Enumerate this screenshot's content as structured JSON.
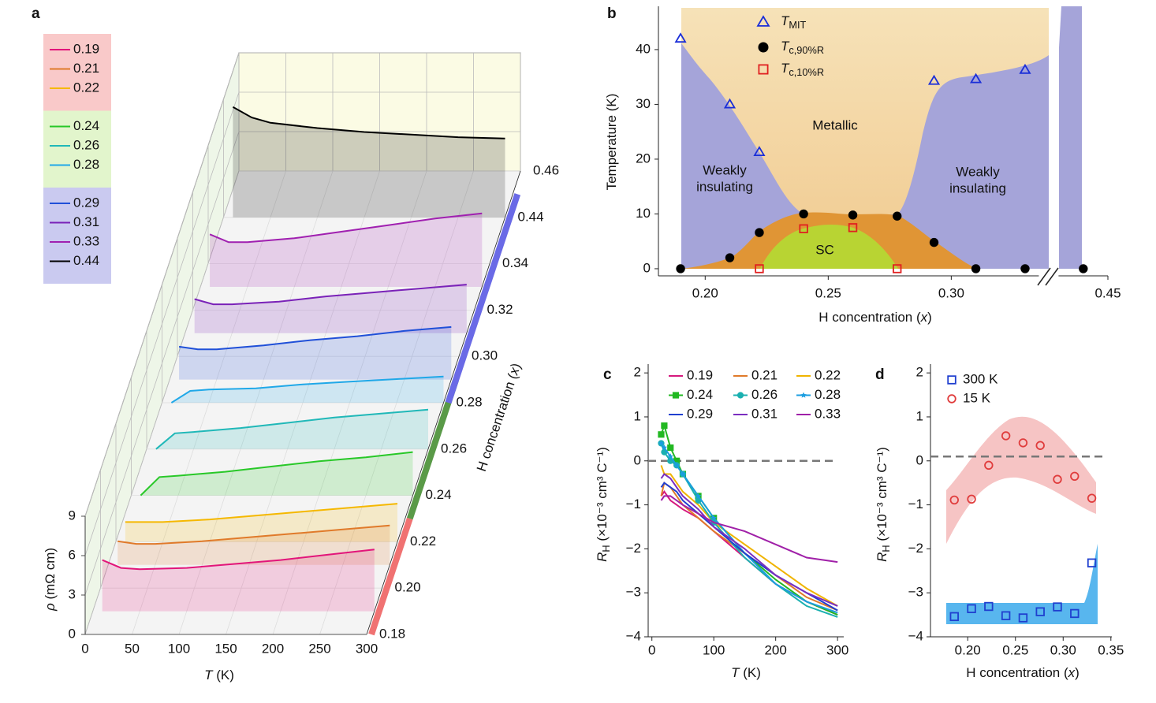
{
  "chart_data": [
    {
      "type": "waterfall",
      "panel": "a",
      "x": [
        10,
        30,
        50,
        100,
        150,
        200,
        250,
        300
      ],
      "xlim": [
        0,
        300
      ],
      "xticks": [
        0,
        50,
        100,
        150,
        200,
        250,
        300
      ],
      "ylim": [
        0,
        9
      ],
      "yticks": [
        0,
        3,
        6,
        9
      ],
      "zticks": [
        0.18,
        {
          "value": 0.2,
          "label": "0.20"
        },
        0.22,
        0.24,
        0.26,
        0.28,
        {
          "value": 0.3,
          "label": "0.30"
        },
        0.32,
        0.34,
        0.44,
        0.46
      ],
      "xlabel": [
        {
          "text": "T",
          "style": "italic"
        },
        {
          "text": " (K)"
        }
      ],
      "ylabel": [
        {
          "text": "ρ",
          "style": "italic"
        },
        {
          "text": " (mΩ cm)"
        }
      ],
      "zlabel": [
        {
          "text": "H concentration ("
        },
        {
          "text": "x",
          "style": "italic"
        },
        {
          "text": ")"
        }
      ],
      "groups": [
        {
          "color": "#f9c9c9",
          "bar_color": "#f07272",
          "series": [
            {
              "name": "0.19",
              "z": 0.19,
              "color": "#e2157a",
              "values": [
                3.9,
                3.3,
                3.2,
                3.3,
                3.6,
                3.9,
                4.3,
                4.7
              ]
            },
            {
              "name": "0.21",
              "z": 0.21,
              "color": "#e07a2a",
              "values": [
                1.8,
                1.6,
                1.6,
                1.8,
                2.1,
                2.4,
                2.7,
                3.0
              ]
            },
            {
              "name": "0.22",
              "z": 0.22,
              "color": "#f5b800",
              "values": [
                1.5,
                1.5,
                1.5,
                1.7,
                2.0,
                2.3,
                2.6,
                2.9
              ]
            }
          ]
        },
        {
          "color": "#e2f5cc",
          "bar_color": "#5a9a48",
          "series": [
            {
              "name": "0.24",
              "z": 0.24,
              "color": "#28c828",
              "values": [
                0,
                1.4,
                1.5,
                1.8,
                2.2,
                2.6,
                2.9,
                3.3
              ]
            },
            {
              "name": "0.26",
              "z": 0.26,
              "color": "#20b8b8",
              "values": [
                0,
                1.2,
                1.3,
                1.6,
                2.0,
                2.4,
                2.7,
                3.0
              ]
            },
            {
              "name": "0.28",
              "z": 0.28,
              "color": "#20a8e8",
              "values": [
                0,
                0.9,
                1.0,
                1.1,
                1.4,
                1.6,
                1.8,
                2.0
              ]
            }
          ]
        },
        {
          "color": "#cacaf0",
          "bar_color": "#6a6ae6",
          "series": [
            {
              "name": "0.29",
              "z": 0.29,
              "color": "#2050d8",
              "values": [
                2.5,
                2.3,
                2.3,
                2.6,
                3.0,
                3.3,
                3.7,
                4.0
              ]
            },
            {
              "name": "0.31",
              "z": 0.31,
              "color": "#7a22b8",
              "values": [
                2.6,
                2.2,
                2.2,
                2.4,
                2.8,
                3.1,
                3.4,
                3.7
              ]
            },
            {
              "name": "0.33",
              "z": 0.33,
              "color": "#a020b0",
              "values": [
                4.0,
                3.4,
                3.4,
                3.7,
                4.2,
                4.7,
                5.2,
                5.6
              ]
            },
            {
              "name": "0.44",
              "z": 0.44,
              "color": "#000000",
              "values": [
                8.4,
                7.6,
                7.2,
                6.8,
                6.5,
                6.3,
                6.1,
                6.0
              ]
            }
          ]
        }
      ]
    },
    {
      "type": "phase",
      "panel": "b",
      "xlim": [
        0.181,
        0.45
      ],
      "xbreak": [
        0.3375,
        0.4325
      ],
      "xticks": [
        {
          "value": 0.2,
          "label": "0.20"
        },
        0.25,
        {
          "value": 0.3,
          "label": "0.30"
        },
        0.45
      ],
      "ylim": [
        -1.3,
        47.9
      ],
      "yticks": [
        0,
        10,
        20,
        30,
        40
      ],
      "xlabel": [
        {
          "text": "H concentration ("
        },
        {
          "text": "x",
          "style": "italic"
        },
        {
          "text": ")"
        }
      ],
      "ylabel": [
        {
          "text": "Temperature (K)"
        }
      ],
      "annotations": [
        {
          "lines": [
            "Metallic"
          ]
        },
        {
          "lines": [
            "Weakly",
            "insulating"
          ]
        },
        {
          "lines": [
            "Weakly",
            "insulating"
          ]
        },
        {
          "lines": [
            "SC"
          ]
        }
      ],
      "series": [
        {
          "name": [
            {
              "text": "T",
              "style": "italic"
            },
            {
              "text": "MIT",
              "style": "sub"
            }
          ],
          "marker": "triangle",
          "color": "#1a2ed8",
          "x": [
            0.19,
            0.21,
            0.222,
            0.293,
            0.31,
            0.33
          ],
          "values": [
            42,
            30,
            21.3,
            34.3,
            34.6,
            36.3
          ]
        },
        {
          "name": [
            {
              "text": "T",
              "style": "italic"
            },
            {
              "text": "c,90%R",
              "style": "sub"
            }
          ],
          "marker": "dot",
          "color": "#000000",
          "x": [
            0.19,
            0.21,
            0.222,
            0.24,
            0.26,
            0.278,
            0.293,
            0.31,
            0.33,
            0.44
          ],
          "values": [
            0,
            2,
            6.6,
            10,
            9.8,
            9.6,
            4.8,
            0,
            0,
            0
          ]
        },
        {
          "name": [
            {
              "text": "T",
              "style": "italic"
            },
            {
              "text": "c,10%R",
              "style": "sub"
            }
          ],
          "marker": "square",
          "color": "#e02020",
          "x": [
            0.222,
            0.24,
            0.26,
            0.278
          ],
          "values": [
            0,
            7.3,
            7.5,
            0
          ]
        }
      ]
    },
    {
      "type": "line",
      "panel": "c",
      "x": [
        15,
        20,
        30,
        40,
        50,
        75,
        100,
        150,
        200,
        250,
        300
      ],
      "xlim": [
        -6,
        310
      ],
      "xticks": [
        0,
        100,
        200,
        300
      ],
      "ylim": [
        -4,
        2.2
      ],
      "yticks": [
        {
          "value": -4,
          "label": "−4"
        },
        {
          "value": -3,
          "label": "−3"
        },
        {
          "value": -2,
          "label": "−2"
        },
        {
          "value": -1,
          "label": "−1"
        },
        0,
        1,
        2
      ],
      "hline": 0,
      "xlabel": [
        {
          "text": "T",
          "style": "italic"
        },
        {
          "text": " (K)"
        }
      ],
      "ylabel": [
        {
          "text": "R",
          "style": "italic"
        },
        {
          "text": "H",
          "style": "sub"
        },
        {
          "text": " (×10⁻³ cm³ C⁻¹)"
        }
      ],
      "series": [
        {
          "name": "0.19",
          "color": "#d6197e",
          "values": [
            -0.8,
            -0.7,
            -0.9,
            -1.0,
            -1.1,
            -1.3,
            -1.6,
            -2.2,
            -2.8,
            -3.2,
            -3.5
          ]
        },
        {
          "name": "0.21",
          "color": "#e07a2a",
          "values": [
            -0.8,
            -0.5,
            -0.6,
            -0.8,
            -1.0,
            -1.3,
            -1.6,
            -2.1,
            -2.6,
            -3.1,
            -3.4
          ]
        },
        {
          "name": "0.22",
          "color": "#f0b400",
          "values": [
            -0.1,
            -0.3,
            -0.3,
            -0.5,
            -0.7,
            -1.0,
            -1.4,
            -1.9,
            -2.4,
            -2.9,
            -3.3
          ]
        },
        {
          "name": "0.24",
          "color": "#22b822",
          "marker": "square",
          "values": [
            0.6,
            0.8,
            0.3,
            0.0,
            -0.3,
            -0.8,
            -1.3,
            -2.1,
            -2.7,
            -3.2,
            -3.5
          ]
        },
        {
          "name": "0.26",
          "color": "#1ab0b0",
          "marker": "dot",
          "values": [
            0.4,
            0.2,
            0.0,
            -0.1,
            -0.3,
            -0.9,
            -1.4,
            -2.2,
            -2.8,
            -3.3,
            -3.55
          ]
        },
        {
          "name": "0.28",
          "color": "#1a9de0",
          "marker": "star",
          "values": [
            0.4,
            0.3,
            0.1,
            -0.1,
            -0.3,
            -0.8,
            -1.3,
            -2.1,
            -2.8,
            -3.2,
            -3.45
          ]
        },
        {
          "name": "0.29",
          "color": "#2040d0",
          "values": [
            -0.6,
            -0.5,
            -0.6,
            -0.7,
            -0.9,
            -1.2,
            -1.5,
            -2.1,
            -2.6,
            -3.0,
            -3.4
          ]
        },
        {
          "name": "0.31",
          "color": "#7a2ec0",
          "values": [
            -0.4,
            -0.3,
            -0.4,
            -0.6,
            -0.8,
            -1.1,
            -1.5,
            -2.0,
            -2.6,
            -3.0,
            -3.3
          ]
        },
        {
          "name": "0.33",
          "color": "#a020a8",
          "values": [
            -0.9,
            -0.8,
            -0.8,
            -0.9,
            -1.0,
            -1.2,
            -1.4,
            -1.6,
            -1.9,
            -2.2,
            -2.3
          ]
        }
      ]
    },
    {
      "type": "scatter",
      "panel": "d",
      "x": [
        0.186,
        0.204,
        0.222,
        0.24,
        0.258,
        0.276,
        0.294,
        0.312,
        0.33
      ],
      "xlim": [
        0.161,
        0.351
      ],
      "xticks": [
        {
          "value": 0.2,
          "label": "0.20"
        },
        0.25,
        {
          "value": 0.3,
          "label": "0.30"
        },
        0.35
      ],
      "ylim": [
        -4,
        2.2
      ],
      "yticks": [
        {
          "value": -4,
          "label": "−4"
        },
        {
          "value": -3,
          "label": "−3"
        },
        {
          "value": -2,
          "label": "−2"
        },
        {
          "value": -1,
          "label": "−1"
        },
        0,
        1,
        2
      ],
      "hline": 0.1,
      "xlabel": [
        {
          "text": "H concentration ("
        },
        {
          "text": "x",
          "style": "italic"
        },
        {
          "text": ")"
        }
      ],
      "ylabel": [
        {
          "text": "R",
          "style": "italic"
        },
        {
          "text": "H",
          "style": "sub"
        },
        {
          "text": " (×10⁻³ cm³ C⁻¹)"
        }
      ],
      "series": [
        {
          "name": "300 K",
          "color": "#1f3fcf",
          "marker": "square",
          "values": [
            -3.54,
            -3.36,
            -3.31,
            -3.52,
            -3.57,
            -3.43,
            -3.32,
            -3.47,
            -2.32
          ]
        },
        {
          "name": "15 K",
          "color": "#e03c3c",
          "marker": "dot",
          "values": [
            -0.89,
            -0.87,
            -0.1,
            0.57,
            0.41,
            0.35,
            -0.42,
            -0.35,
            -0.85
          ]
        }
      ]
    }
  ]
}
